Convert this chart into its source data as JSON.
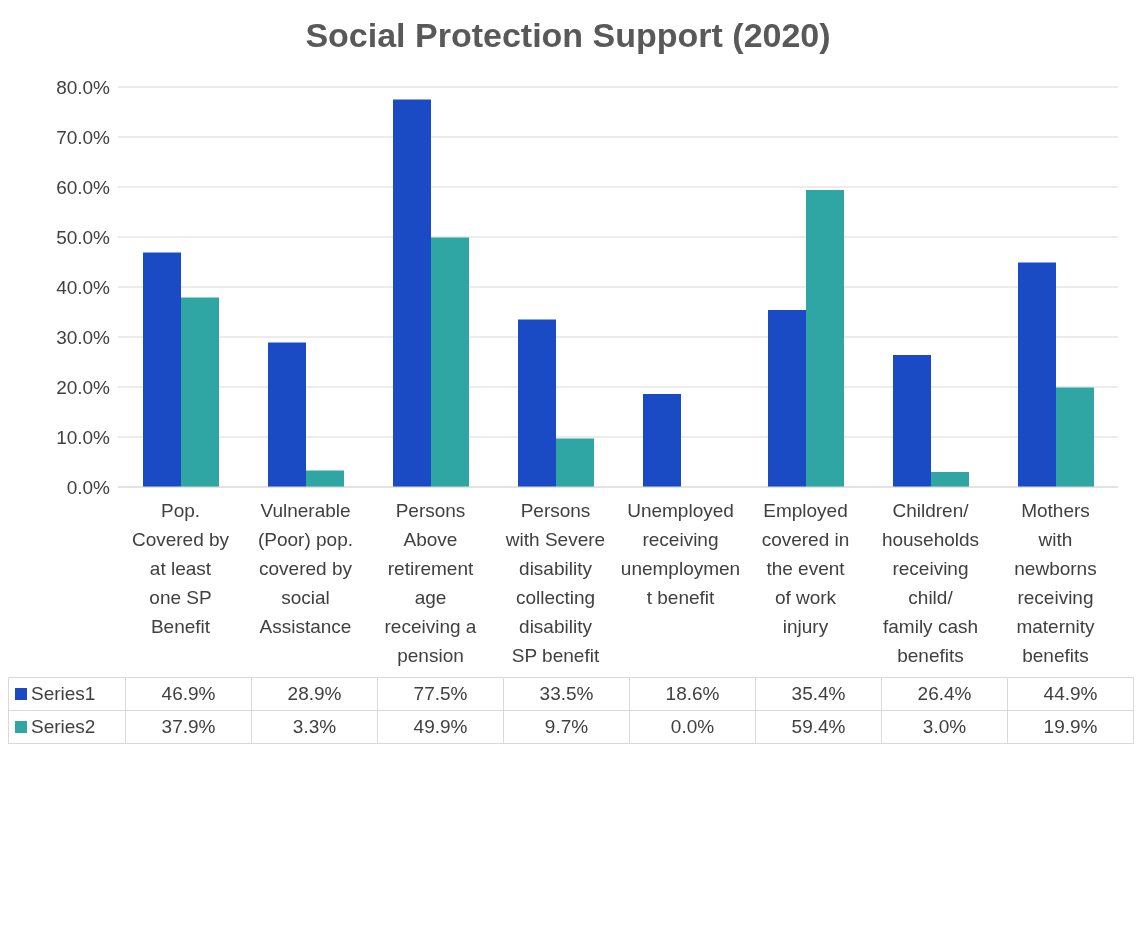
{
  "chart_data": {
    "type": "bar",
    "title": "Social Protection Support (2020)",
    "categories": [
      "Pop. Covered by at least one SP Benefit",
      "Vulnerable (Poor) pop. covered by social Assistance",
      "Persons Above retirement age receiving a pension",
      "Persons with Severe disability collecting disability SP benefit",
      "Unemployed receiving unemployment benefit",
      "Employed covered in the event of work injury",
      "Children/households receiving child/family cash benefits",
      "Mothers with newborns receiving maternity benefits"
    ],
    "series": [
      {
        "name": "Series1",
        "color": "#1a4bc4",
        "values": [
          46.9,
          28.9,
          77.5,
          33.5,
          18.6,
          35.4,
          26.4,
          44.9
        ],
        "value_labels": [
          "46.9%",
          "28.9%",
          "77.5%",
          "33.5%",
          "18.6%",
          "35.4%",
          "26.4%",
          "44.9%"
        ]
      },
      {
        "name": "Series2",
        "color": "#2fa6a3",
        "values": [
          37.9,
          3.3,
          49.9,
          9.7,
          0.0,
          59.4,
          3.0,
          19.9
        ],
        "value_labels": [
          "37.9%",
          "3.3%",
          "49.9%",
          "9.7%",
          "0.0%",
          "59.4%",
          "3.0%",
          "19.9%"
        ]
      }
    ],
    "ylim": [
      0,
      80
    ],
    "yticks": [
      {
        "value": 0,
        "label": "0.0%"
      },
      {
        "value": 10,
        "label": "10.0%"
      },
      {
        "value": 20,
        "label": "20.0%"
      },
      {
        "value": 30,
        "label": "30.0%"
      },
      {
        "value": 40,
        "label": "40.0%"
      },
      {
        "value": 50,
        "label": "50.0%"
      },
      {
        "value": 60,
        "label": "60.0%"
      },
      {
        "value": 70,
        "label": "70.0%"
      },
      {
        "value": 80,
        "label": "80.0%"
      }
    ],
    "grid": "y",
    "legend": "bottom"
  }
}
